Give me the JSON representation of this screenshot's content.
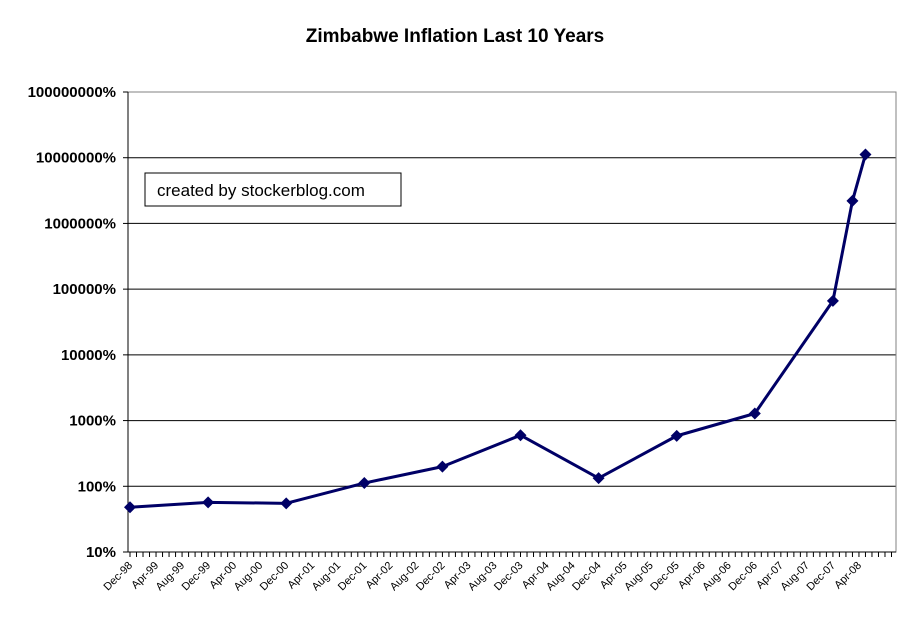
{
  "chart_data": {
    "type": "line",
    "title": "Zimbabwe Inflation Last 10 Years",
    "annotation": "created by stockerblog.com",
    "y_scale": "log",
    "ylim_percent": [
      10,
      100000000
    ],
    "y_tick_labels": [
      "100000000%",
      "10000000%",
      "1000000%",
      "100000%",
      "10000%",
      "1000%",
      "100%",
      "10%"
    ],
    "x_tick_labels": [
      "Dec-98",
      "Apr-99",
      "Aug-99",
      "Dec-99",
      "Apr-00",
      "Aug-00",
      "Dec-00",
      "Apr-01",
      "Aug-01",
      "Dec-01",
      "Apr-02",
      "Aug-02",
      "Dec-02",
      "Apr-03",
      "Aug-03",
      "Dec-03",
      "Apr-04",
      "Aug-04",
      "Dec-04",
      "Apr-05",
      "Aug-05",
      "Dec-05",
      "Apr-06",
      "Aug-06",
      "Dec-06",
      "Apr-07",
      "Aug-07",
      "Dec-07",
      "Apr-08"
    ],
    "grid": "horizontal",
    "legend": "none",
    "series": [
      {
        "points": [
          {
            "x": "Dec-98",
            "y": 48
          },
          {
            "x": "Dec-99",
            "y": 57
          },
          {
            "x": "Dec-00",
            "y": 55
          },
          {
            "x": "Dec-01",
            "y": 112
          },
          {
            "x": "Dec-02",
            "y": 199
          },
          {
            "x": "Dec-03",
            "y": 599
          },
          {
            "x": "Dec-04",
            "y": 133
          },
          {
            "x": "Dec-05",
            "y": 585
          },
          {
            "x": "Dec-06",
            "y": 1281
          },
          {
            "x": "Dec-07",
            "y": 66212
          },
          {
            "x": "Mar-08",
            "y": 2200000
          },
          {
            "x": "May-08",
            "y": 11200000
          }
        ]
      }
    ],
    "colors": {
      "line": "#000066",
      "marker": "#000066",
      "grid": "#000000",
      "plot_border": "#808080"
    }
  }
}
